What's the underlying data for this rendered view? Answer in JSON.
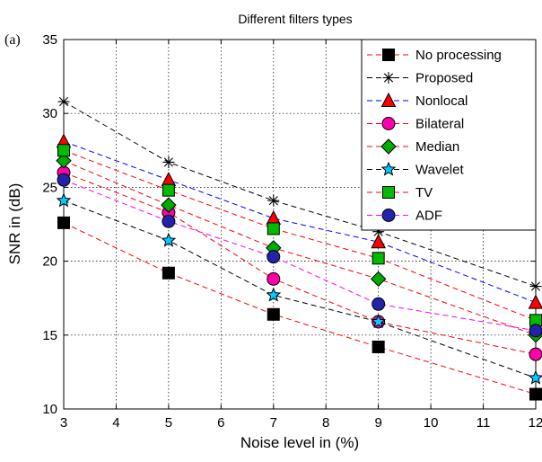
{
  "chart_data": {
    "type": "line",
    "panel_label": "(a)",
    "title": "Different filters types",
    "xlabel": "Noise level  in (%)",
    "ylabel": "SNR in (dB)",
    "x": [
      3,
      5,
      7,
      9,
      12
    ],
    "xlim": [
      3,
      12
    ],
    "ylim": [
      10,
      35
    ],
    "xticks": [
      3,
      4,
      5,
      6,
      7,
      8,
      9,
      10,
      11,
      12
    ],
    "yticks": [
      10,
      15,
      20,
      25,
      30,
      35
    ],
    "grid": true,
    "legend_position": "top-right",
    "series": [
      {
        "name": "No processing",
        "values": [
          22.6,
          19.2,
          16.4,
          14.2,
          11.0
        ],
        "color": "#ff0000",
        "marker": "square",
        "marker_fill": "#000000"
      },
      {
        "name": "Proposed",
        "values": [
          30.8,
          26.7,
          24.1,
          22.0,
          18.3
        ],
        "color": "#000000",
        "marker": "asterisk",
        "marker_fill": "none"
      },
      {
        "name": "Nonlocal",
        "values": [
          28.1,
          25.5,
          22.9,
          21.3,
          17.2
        ],
        "color": "#0000ff",
        "marker": "triangle",
        "marker_fill": "#ff0000"
      },
      {
        "name": "Bilateral",
        "values": [
          26.0,
          23.3,
          18.8,
          15.9,
          13.7
        ],
        "color": "#ff0000",
        "marker": "circle",
        "marker_fill": "#ff00aa"
      },
      {
        "name": "Median",
        "values": [
          26.8,
          23.8,
          20.9,
          18.8,
          15.0
        ],
        "color": "#ff0000",
        "marker": "diamond",
        "marker_fill": "#00aa00"
      },
      {
        "name": "Wavelet",
        "values": [
          24.1,
          21.4,
          17.7,
          15.9,
          12.1
        ],
        "color": "#000000",
        "marker": "star",
        "marker_fill": "#00ccff"
      },
      {
        "name": "TV",
        "values": [
          27.5,
          24.8,
          22.2,
          20.2,
          16.0
        ],
        "color": "#ff0000",
        "marker": "square",
        "marker_fill": "#00bb00"
      },
      {
        "name": "ADF",
        "values": [
          25.5,
          22.7,
          20.3,
          17.1,
          15.3
        ],
        "color": "#ff00ff",
        "marker": "circle",
        "marker_fill": "#2222aa"
      }
    ]
  }
}
